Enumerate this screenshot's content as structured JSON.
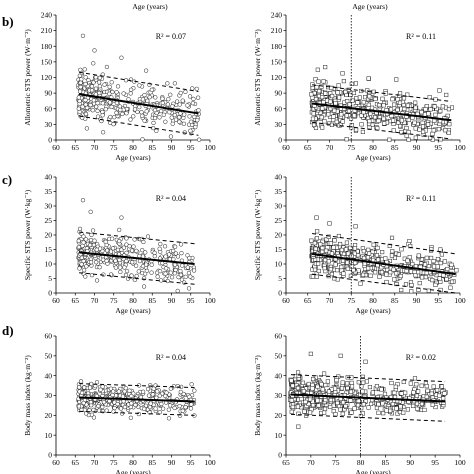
{
  "top_labels": [
    "Age (years)",
    "Age (years)"
  ],
  "panel_letters": [
    "b)",
    "c)",
    "d)"
  ],
  "chart_data": [
    {
      "type": "scatter",
      "id": "b-left",
      "marker": "circle",
      "xlabel": "Age (years)",
      "ylabel": "Allometric STS power (W·m⁻²)",
      "annotation": "R² = 0.07",
      "xlim": [
        60,
        100
      ],
      "ylim": [
        0,
        240
      ],
      "xticks": [
        60,
        65,
        70,
        75,
        80,
        85,
        90,
        95,
        100
      ],
      "yticks": [
        0,
        30,
        60,
        90,
        120,
        150,
        180,
        210,
        240
      ],
      "xrange": [
        66,
        97
      ],
      "trend": [
        88,
        51
      ],
      "band": 42,
      "spread": 22,
      "n": 380,
      "outliers": [
        [
          67,
          200
        ],
        [
          70,
          172
        ],
        [
          77,
          158
        ]
      ],
      "vline": null
    },
    {
      "type": "scatter",
      "id": "b-right",
      "marker": "square",
      "xlabel": "Age (years)",
      "ylabel": "Allometric STS power (W·m⁻²)",
      "annotation": "R² = 0.11",
      "xlim": [
        60,
        100
      ],
      "ylim": [
        0,
        240
      ],
      "xticks": [
        60,
        65,
        70,
        75,
        80,
        85,
        90,
        95,
        100
      ],
      "yticks": [
        0,
        30,
        60,
        90,
        120,
        150,
        180,
        210,
        240
      ],
      "xrange": [
        66,
        98
      ],
      "trend": [
        70,
        38
      ],
      "band": 36,
      "spread": 20,
      "n": 520,
      "outliers": [
        [
          69,
          140
        ],
        [
          73,
          128
        ],
        [
          79,
          118
        ]
      ],
      "vline": 75
    },
    {
      "type": "scatter",
      "id": "c-left",
      "marker": "circle",
      "xlabel": "Age (years)",
      "ylabel": "Specific STS power (W·kg⁻¹)",
      "annotation": "R² = 0.04",
      "xlim": [
        60,
        100
      ],
      "ylim": [
        0,
        40
      ],
      "xticks": [
        60,
        65,
        70,
        75,
        80,
        85,
        90,
        95,
        100
      ],
      "yticks": [
        0,
        5,
        10,
        15,
        20,
        25,
        30,
        35,
        40
      ],
      "xrange": [
        66,
        96
      ],
      "trend": [
        14,
        10
      ],
      "band": 7,
      "spread": 3.5,
      "n": 360,
      "outliers": [
        [
          67,
          32
        ],
        [
          69,
          28
        ],
        [
          77,
          26
        ]
      ],
      "vline": null
    },
    {
      "type": "scatter",
      "id": "c-right",
      "marker": "square",
      "xlabel": "Age (years)",
      "ylabel": "Specific STS power (W·kg⁻¹)",
      "annotation": "R² = 0.11",
      "xlim": [
        60,
        100
      ],
      "ylim": [
        0,
        40
      ],
      "xticks": [
        60,
        65,
        70,
        75,
        80,
        85,
        90,
        95,
        100
      ],
      "yticks": [
        0,
        5,
        10,
        15,
        20,
        25,
        30,
        35,
        40
      ],
      "xrange": [
        66,
        99
      ],
      "trend": [
        13.5,
        6.5
      ],
      "band": 7,
      "spread": 3.3,
      "n": 520,
      "outliers": [
        [
          67,
          26
        ],
        [
          70,
          24
        ],
        [
          76,
          23
        ]
      ],
      "vline": 75
    },
    {
      "type": "scatter",
      "id": "d-left",
      "marker": "circle",
      "xlabel": "Age (years)",
      "ylabel": "Body mass index (kg·m⁻²)",
      "annotation": "R² = 0.04",
      "xlim": [
        60,
        100
      ],
      "ylim": [
        0,
        60
      ],
      "xticks": [
        60,
        65,
        70,
        75,
        80,
        85,
        90,
        95,
        100
      ],
      "yticks": [
        0,
        10,
        20,
        30,
        40,
        50,
        60
      ],
      "xrange": [
        66,
        96
      ],
      "trend": [
        29,
        27
      ],
      "band": 7,
      "spread": 3.5,
      "n": 420,
      "outliers": [],
      "vline": null
    },
    {
      "type": "scatter",
      "id": "d-right",
      "marker": "square",
      "xlabel": "Age (years)",
      "ylabel": "Body mass index (kg·m⁻²)",
      "annotation": "R² = 0.02",
      "xlim": [
        65,
        100
      ],
      "ylim": [
        0,
        60
      ],
      "xticks": [
        65,
        70,
        75,
        80,
        85,
        90,
        95,
        100
      ],
      "yticks": [
        0,
        10,
        20,
        30,
        40,
        50,
        60
      ],
      "xrange": [
        66,
        97
      ],
      "trend": [
        30.5,
        27
      ],
      "band": 10,
      "spread": 4.5,
      "n": 560,
      "outliers": [
        [
          70,
          51
        ],
        [
          76,
          50
        ],
        [
          81,
          47
        ]
      ],
      "vline": 80
    }
  ]
}
